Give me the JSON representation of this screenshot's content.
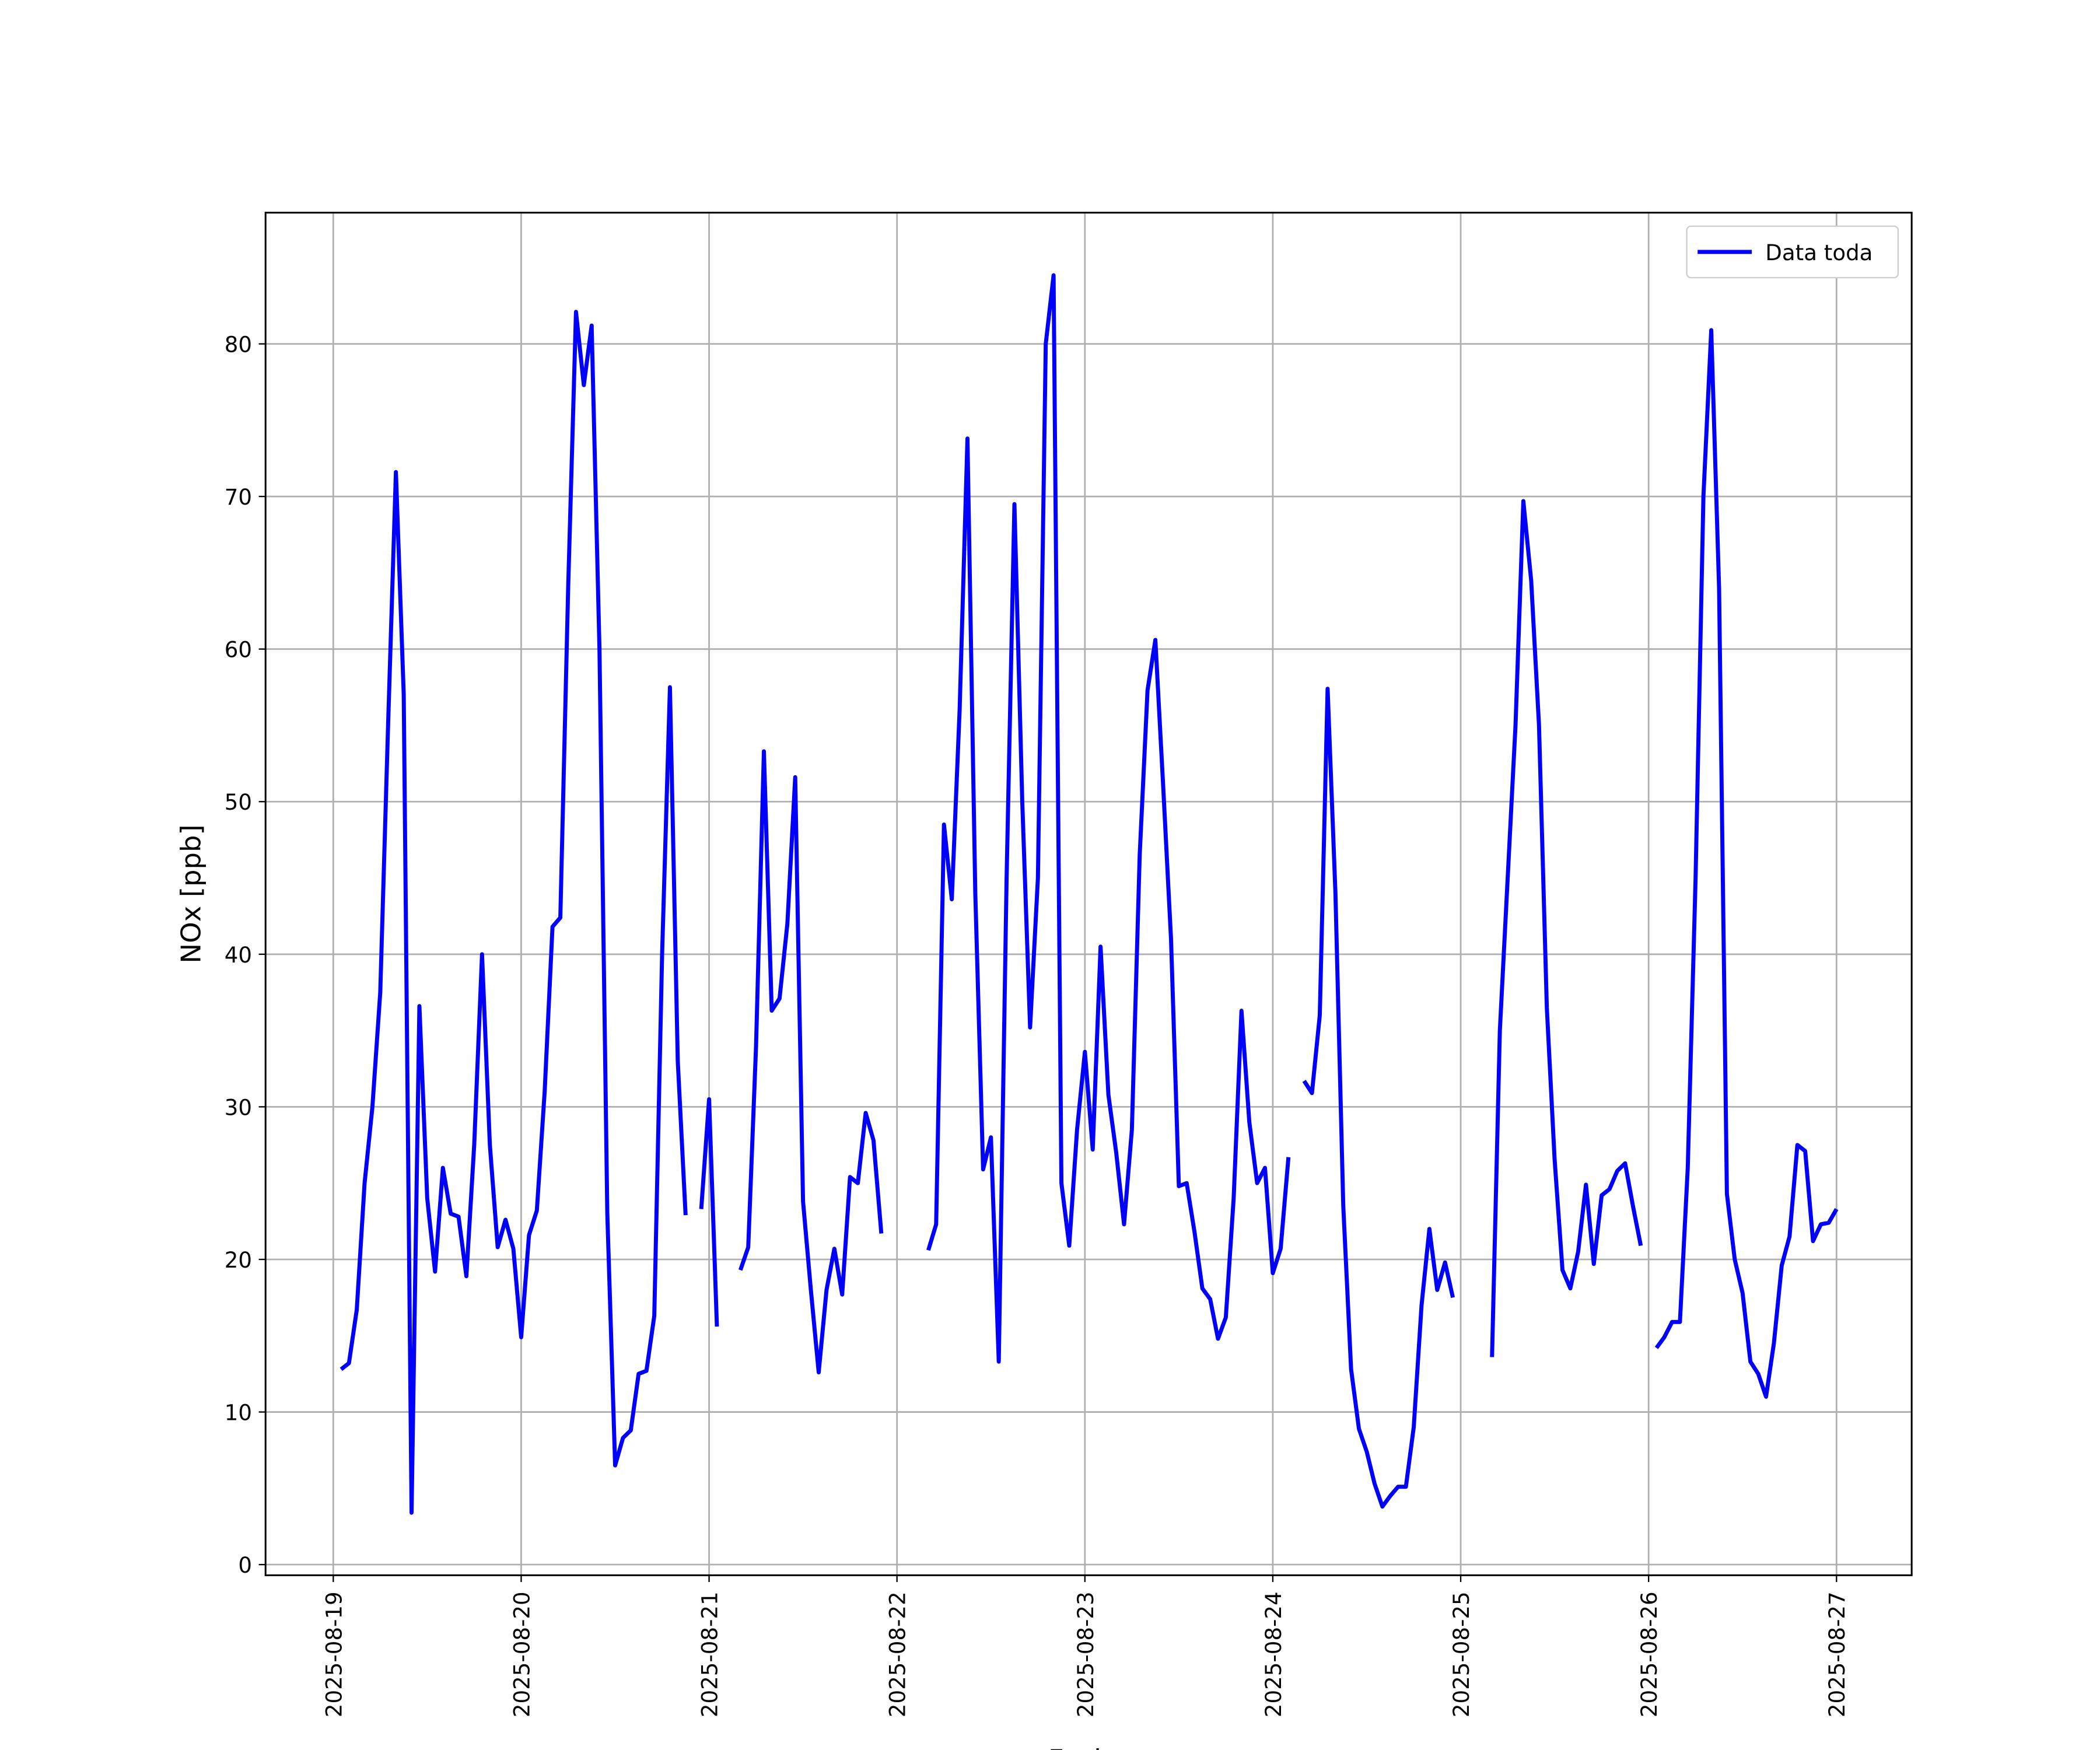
{
  "chart_data": {
    "type": "line",
    "xlabel": "Fecha",
    "ylabel": "NOx [ppb]",
    "x": [
      1,
      2,
      3,
      4,
      5,
      6,
      7,
      8,
      9,
      10,
      11,
      12,
      13,
      14,
      15,
      16,
      17,
      18,
      19,
      20,
      21,
      22,
      23,
      24,
      25,
      26,
      27,
      28,
      29,
      30,
      31,
      32,
      33,
      34,
      35,
      36,
      37,
      38,
      39,
      40,
      41,
      42,
      43,
      44,
      45,
      46,
      47,
      48,
      49,
      50,
      51,
      52,
      53,
      54,
      55,
      56,
      57,
      58,
      59,
      60,
      61,
      62,
      63,
      64,
      65,
      66,
      67,
      68,
      69,
      70,
      71,
      72,
      73,
      74,
      75,
      76,
      77,
      78,
      79,
      80,
      81,
      82,
      83,
      84,
      85,
      86,
      87,
      88,
      89,
      90,
      91,
      92,
      93,
      94,
      95,
      96,
      97,
      98,
      99,
      100,
      101,
      102,
      103,
      104,
      105,
      106,
      107,
      108,
      109,
      110,
      111,
      112,
      113,
      114,
      115,
      116,
      117,
      118,
      119,
      120,
      121,
      122,
      123,
      124,
      125,
      126,
      127,
      128,
      129,
      130,
      131,
      132,
      133,
      134,
      135,
      136,
      137,
      138,
      139,
      140,
      141,
      142,
      143,
      144,
      145,
      146,
      147,
      148,
      149,
      150,
      151,
      152,
      153,
      154,
      155,
      156,
      157,
      158,
      159,
      160,
      161,
      162,
      163,
      164,
      165,
      166,
      167,
      168,
      169,
      170,
      171,
      172,
      173,
      174,
      175,
      176,
      177,
      178,
      179,
      180,
      181,
      182,
      183,
      184,
      185,
      186,
      187,
      188,
      189,
      190,
      191,
      192
    ],
    "series": [
      {
        "name": "Data toda",
        "color": "#0000ff",
        "values": [
          12.8,
          13.2,
          16.7,
          25,
          30,
          37.5,
          55,
          71.6,
          57,
          3.4,
          36.6,
          24,
          19.2,
          26,
          23,
          22.8,
          18.9,
          27.5,
          40,
          27.5,
          20.8,
          22.6,
          20.7,
          14.9,
          21.6,
          23.2,
          31,
          41.8,
          42.4,
          64,
          82.1,
          77.3,
          81.2,
          60,
          23,
          6.5,
          8.3,
          8.8,
          12.5,
          12.7,
          16.3,
          40,
          57.5,
          33,
          22.9,
          null,
          23.3,
          30.5,
          15.6,
          null,
          null,
          19.3,
          20.8,
          34,
          53.3,
          36.3,
          37.1,
          42,
          51.6,
          23.8,
          18,
          12.6,
          18,
          20.7,
          17.7,
          25.4,
          25,
          29.6,
          27.8,
          21.7,
          null,
          null,
          null,
          null,
          null,
          20.6,
          22.3,
          48.5,
          43.6,
          56,
          73.8,
          44,
          25.9,
          28,
          13.3,
          45,
          69.5,
          50,
          35.2,
          45,
          80,
          84.5,
          25,
          20.9,
          28.5,
          33.6,
          27.2,
          40.5,
          30.8,
          27,
          22.3,
          28.5,
          46.5,
          57.3,
          60.6,
          51,
          41,
          24.8,
          25,
          21.8,
          18.1,
          17.4,
          14.8,
          16.2,
          24,
          36.3,
          29,
          25,
          26,
          19.1,
          20.7,
          26.7,
          null,
          31.7,
          30.9,
          36,
          57.4,
          44,
          23.5,
          12.8,
          8.9,
          7.4,
          5.3,
          3.8,
          4.5,
          5.1,
          5.1,
          9,
          17,
          22,
          18,
          19.8,
          17.5,
          null,
          null,
          null,
          null,
          13.6,
          35,
          45,
          55,
          69.7,
          64.5,
          55,
          36.5,
          26.5,
          19.3,
          18.1,
          20.5,
          24.9,
          19.7,
          24.2,
          24.6,
          25.8,
          26.3,
          23.5,
          20.9,
          null,
          14.2,
          14.9,
          15.9,
          15.9,
          26,
          45,
          70,
          80.9,
          64,
          24.3,
          20,
          17.8,
          13.3,
          12.5,
          11,
          14.5,
          19.6,
          21.5,
          27.5,
          27.1,
          21.2,
          22.3,
          22.4,
          23.3
        ]
      }
    ],
    "xlim": [
      -8.65,
      201.6
    ],
    "xticks": [
      {
        "value": 0,
        "label": "2025-08-19"
      },
      {
        "value": 24,
        "label": "2025-08-20"
      },
      {
        "value": 48,
        "label": "2025-08-21"
      },
      {
        "value": 72,
        "label": "2025-08-22"
      },
      {
        "value": 96,
        "label": "2025-08-23"
      },
      {
        "value": 120,
        "label": "2025-08-24"
      },
      {
        "value": 144,
        "label": "2025-08-25"
      },
      {
        "value": 168,
        "label": "2025-08-26"
      },
      {
        "value": 192,
        "label": "2025-08-27"
      }
    ],
    "ylim": [
      -0.7,
      88.6
    ],
    "yticks": [
      0,
      10,
      20,
      30,
      40,
      50,
      60,
      70,
      80
    ],
    "grid": true,
    "legend": "upper right"
  }
}
